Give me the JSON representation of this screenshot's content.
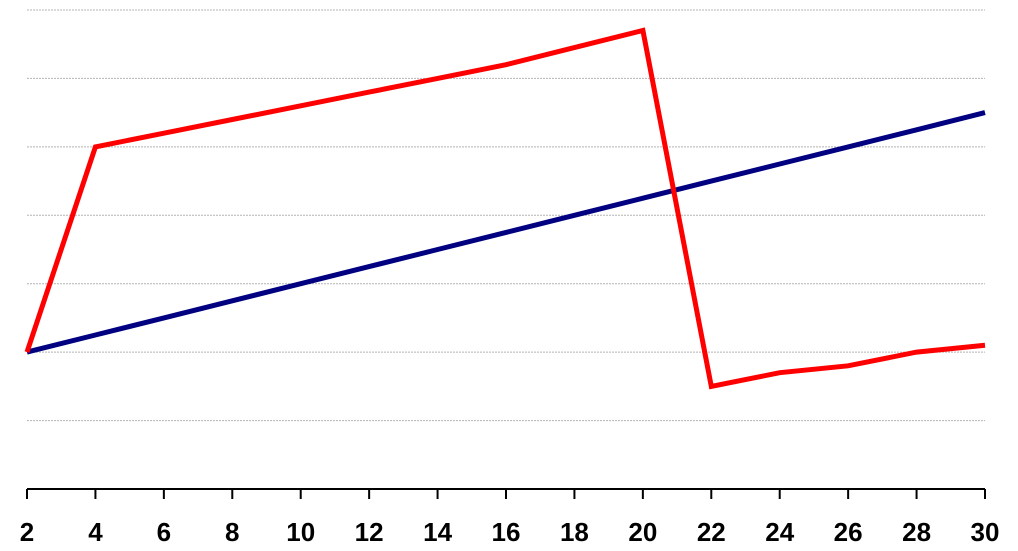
{
  "chart_data": {
    "type": "line",
    "x": [
      2,
      4,
      6,
      8,
      10,
      12,
      14,
      16,
      18,
      20,
      22,
      24,
      26,
      28,
      30
    ],
    "x_tick_labels": [
      "2",
      "4",
      "6",
      "8",
      "10",
      "12",
      "14",
      "16",
      "18",
      "20",
      "22",
      "24",
      "26",
      "28",
      "30"
    ],
    "xlim": [
      2,
      30
    ],
    "ylim": [
      -2,
      5
    ],
    "y_gridlines": [
      -1,
      0,
      1,
      2,
      3,
      4,
      5
    ],
    "y_tick_labels_shown": false,
    "grid": true,
    "legend": "none",
    "series": [
      {
        "color": "#000080",
        "values": [
          0,
          0.25,
          0.5,
          0.75,
          1.0,
          1.25,
          1.5,
          1.75,
          2.0,
          2.25,
          2.5,
          2.75,
          3.0,
          3.25,
          3.5
        ]
      },
      {
        "color": "#ff0000",
        "values": [
          0,
          3.0,
          3.2,
          3.4,
          3.6,
          3.8,
          4.0,
          4.2,
          4.45,
          4.7,
          -0.5,
          -0.3,
          -0.2,
          0,
          0.1
        ]
      }
    ]
  }
}
